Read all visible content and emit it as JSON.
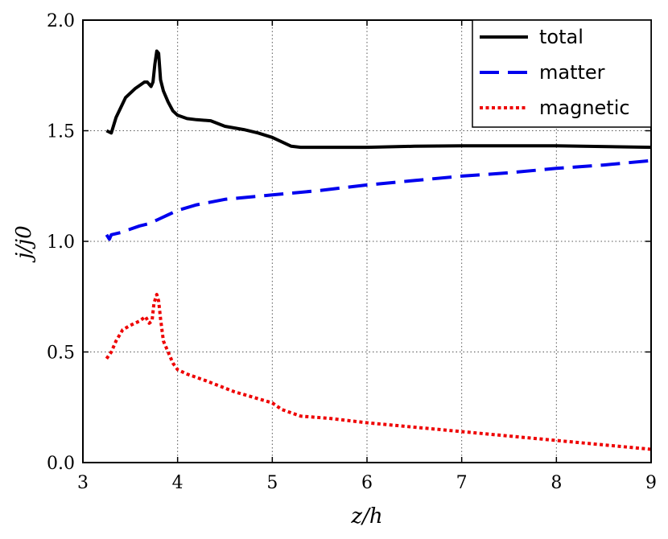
{
  "chart_data": {
    "type": "line",
    "xlabel": "z/h",
    "ylabel": "j/j0",
    "xlim": [
      3,
      9
    ],
    "ylim": [
      0.0,
      2.0
    ],
    "xticks": [
      "3",
      "4",
      "5",
      "6",
      "7",
      "8",
      "9"
    ],
    "yticks": [
      "0.0",
      "0.5",
      "1.0",
      "1.5",
      "2.0"
    ],
    "grid": true,
    "legend_position": "top-right",
    "series": [
      {
        "name": "total",
        "color": "#000000",
        "style": "solid",
        "x": [
          3.25,
          3.3,
          3.35,
          3.45,
          3.55,
          3.65,
          3.68,
          3.72,
          3.74,
          3.76,
          3.78,
          3.8,
          3.82,
          3.85,
          3.9,
          3.95,
          4.0,
          4.1,
          4.2,
          4.35,
          4.5,
          4.7,
          4.85,
          5.0,
          5.1,
          5.2,
          5.3,
          5.6,
          6.0,
          6.5,
          7.0,
          8.0,
          9.0
        ],
        "values": [
          1.5,
          1.49,
          1.56,
          1.65,
          1.69,
          1.72,
          1.72,
          1.7,
          1.72,
          1.8,
          1.86,
          1.85,
          1.73,
          1.68,
          1.63,
          1.59,
          1.57,
          1.555,
          1.55,
          1.545,
          1.52,
          1.505,
          1.49,
          1.47,
          1.45,
          1.43,
          1.425,
          1.425,
          1.425,
          1.43,
          1.432,
          1.432,
          1.425
        ]
      },
      {
        "name": "matter",
        "color": "#0000ee",
        "style": "dashed",
        "x": [
          3.25,
          3.28,
          3.3,
          3.4,
          3.5,
          3.6,
          3.7,
          3.8,
          3.9,
          4.0,
          4.2,
          4.5,
          5.0,
          5.5,
          6.0,
          6.5,
          7.0,
          7.5,
          8.0,
          8.5,
          9.0
        ],
        "values": [
          1.03,
          1.01,
          1.03,
          1.04,
          1.055,
          1.07,
          1.08,
          1.1,
          1.12,
          1.14,
          1.165,
          1.19,
          1.21,
          1.23,
          1.255,
          1.275,
          1.295,
          1.31,
          1.33,
          1.345,
          1.365
        ]
      },
      {
        "name": "magnetic",
        "color": "#ee0000",
        "style": "dotted",
        "x": [
          3.25,
          3.3,
          3.35,
          3.42,
          3.5,
          3.6,
          3.66,
          3.7,
          3.73,
          3.75,
          3.78,
          3.8,
          3.82,
          3.85,
          3.9,
          3.95,
          4.0,
          4.1,
          4.3,
          4.6,
          5.0,
          5.1,
          5.3,
          5.6,
          6.0,
          6.5,
          7.0,
          7.5,
          8.0,
          8.5,
          9.0
        ],
        "values": [
          0.47,
          0.5,
          0.55,
          0.6,
          0.62,
          0.64,
          0.66,
          0.63,
          0.64,
          0.72,
          0.76,
          0.73,
          0.65,
          0.55,
          0.5,
          0.45,
          0.42,
          0.4,
          0.37,
          0.32,
          0.27,
          0.24,
          0.21,
          0.2,
          0.18,
          0.16,
          0.14,
          0.12,
          0.1,
          0.08,
          0.06
        ]
      }
    ]
  }
}
